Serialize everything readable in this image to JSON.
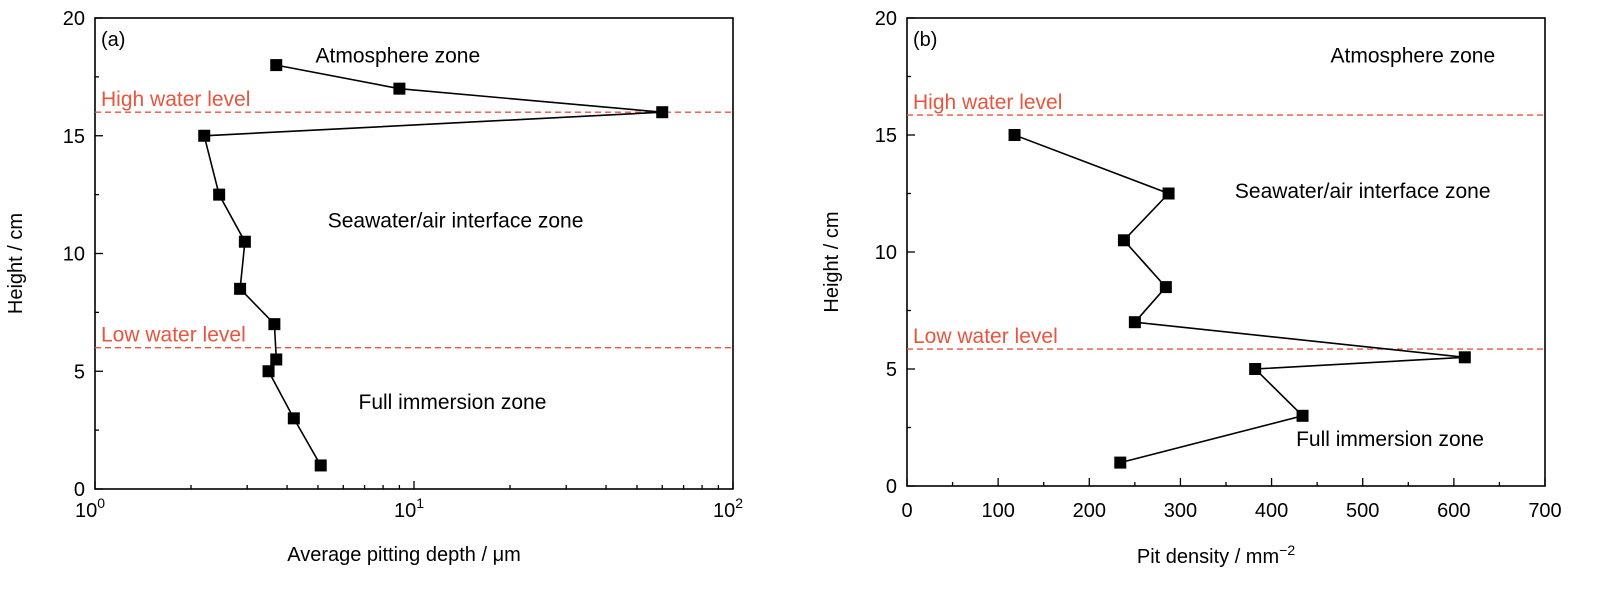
{
  "chart_data": [
    {
      "type": "line",
      "panel_label": "(a)",
      "xlabel": "Average pitting depth / μm",
      "ylabel": "Height / cm",
      "xscale": "log",
      "xlim": [
        1,
        100
      ],
      "ylim": [
        0,
        20
      ],
      "x_ticks": [
        {
          "value": 1,
          "base": "10",
          "exp": "0"
        },
        {
          "value": 10,
          "base": "10",
          "exp": "1"
        },
        {
          "value": 100,
          "base": "10",
          "exp": "2"
        }
      ],
      "y_ticks": [
        0,
        5,
        10,
        15,
        20
      ],
      "grid": false,
      "series": [
        {
          "marker": "square",
          "points": [
            {
              "x": 3.7,
              "y": 18
            },
            {
              "x": 9.0,
              "y": 17
            },
            {
              "x": 60,
              "y": 16
            },
            {
              "x": 2.2,
              "y": 15
            },
            {
              "x": 2.45,
              "y": 12.5
            },
            {
              "x": 2.95,
              "y": 10.5
            },
            {
              "x": 2.85,
              "y": 8.5
            },
            {
              "x": 3.65,
              "y": 7
            },
            {
              "x": 3.7,
              "y": 5.5
            },
            {
              "x": 3.5,
              "y": 5
            },
            {
              "x": 4.2,
              "y": 3
            },
            {
              "x": 5.1,
              "y": 1
            }
          ]
        }
      ],
      "reference_lines": [
        {
          "label": "High water level",
          "y": 16,
          "color": "#e8553e"
        },
        {
          "label": "Low water level",
          "y": 6,
          "color": "#e8553e"
        }
      ],
      "annotations": [
        {
          "text": "Atmosphere zone",
          "x": 8.9,
          "y": 18.1
        },
        {
          "text": "Seawater/air interface zone",
          "x": 13.5,
          "y": 11.1
        },
        {
          "text": "Full immersion zone",
          "x": 13.2,
          "y": 3.4
        }
      ]
    },
    {
      "type": "line",
      "panel_label": "(b)",
      "xlabel": "Pit density / mm",
      "xlabel_exp": "−2",
      "ylabel": "Height / cm",
      "xscale": "linear",
      "xlim": [
        0,
        700
      ],
      "ylim": [
        0,
        20
      ],
      "x_ticks": [
        0,
        100,
        200,
        300,
        400,
        500,
        600,
        700
      ],
      "y_ticks": [
        0,
        5,
        10,
        15,
        20
      ],
      "grid": false,
      "series": [
        {
          "marker": "square",
          "points": [
            {
              "x": 118,
              "y": 15
            },
            {
              "x": 287,
              "y": 12.5
            },
            {
              "x": 238,
              "y": 10.5
            },
            {
              "x": 284,
              "y": 8.5
            },
            {
              "x": 250,
              "y": 7
            },
            {
              "x": 612,
              "y": 5.5
            },
            {
              "x": 382,
              "y": 5
            },
            {
              "x": 434,
              "y": 3
            },
            {
              "x": 234,
              "y": 1
            }
          ]
        }
      ],
      "reference_lines": [
        {
          "label": "High water level",
          "y": 15.85,
          "color": "#e8553e"
        },
        {
          "label": "Low water level",
          "y": 5.85,
          "color": "#e8553e"
        }
      ],
      "annotations": [
        {
          "text": "Atmosphere zone",
          "x": 555,
          "y": 18.1
        },
        {
          "text": "Seawater/air interface zone",
          "x": 500,
          "y": 12.3
        },
        {
          "text": "Full immersion zone",
          "x": 530,
          "y": 1.7
        }
      ]
    }
  ]
}
